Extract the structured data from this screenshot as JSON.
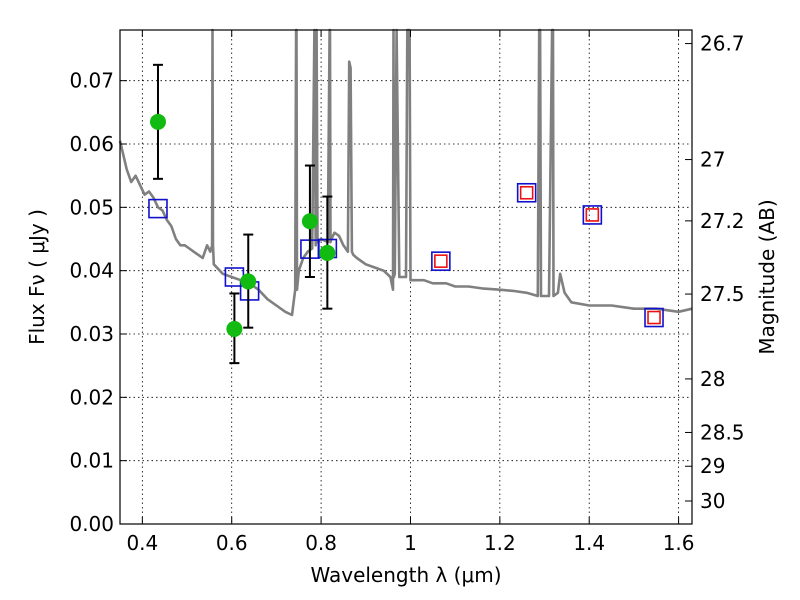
{
  "chart_data": {
    "type": "scatter",
    "xlabel": "Wavelength  λ (μm)",
    "ylabel": "Flux  Fν  ( μJy )",
    "y2label": "Magnitude (AB)",
    "xlim": [
      0.35,
      1.63
    ],
    "ylim": [
      0.0,
      0.078
    ],
    "grid": true,
    "x_ticks": [
      0.4,
      0.6,
      0.8,
      1.0,
      1.2,
      1.4,
      1.6
    ],
    "x_tick_labels": [
      "0.4",
      "0.6",
      "0.8",
      "1",
      "1.2",
      "1.4",
      "1.6"
    ],
    "y_ticks": [
      0.0,
      0.01,
      0.02,
      0.03,
      0.04,
      0.05,
      0.06,
      0.07
    ],
    "y_tick_labels": [
      "0.00",
      "0.01",
      "0.02",
      "0.03",
      "0.04",
      "0.05",
      "0.06",
      "0.07"
    ],
    "mag_ticks": [
      26.7,
      27.0,
      27.2,
      27.5,
      28.0,
      28.5,
      29.0,
      30.0
    ],
    "mag_tick_labels": [
      "26.7",
      "27",
      "27.2",
      "27.5",
      "28",
      "28.5",
      "29",
      "30"
    ],
    "series": [
      {
        "type": "scatter_errorbar",
        "color": "#11bb11",
        "points": [
          {
            "x": 0.435,
            "y": 0.0635,
            "ylo": 0.0545,
            "yhi": 0.0725
          },
          {
            "x": 0.606,
            "y": 0.0308,
            "ylo": 0.0254,
            "yhi": 0.0364
          },
          {
            "x": 0.637,
            "y": 0.0383,
            "ylo": 0.031,
            "yhi": 0.0457
          },
          {
            "x": 0.775,
            "y": 0.0478,
            "ylo": 0.039,
            "yhi": 0.0566
          },
          {
            "x": 0.814,
            "y": 0.0428,
            "ylo": 0.034,
            "yhi": 0.0517
          }
        ]
      },
      {
        "type": "scatter",
        "color": "#1111cc",
        "marker": "square-open",
        "x": [
          0.435,
          0.606,
          0.64,
          0.775,
          0.814,
          1.068,
          1.26,
          1.407,
          1.545
        ],
        "y": [
          0.0498,
          0.039,
          0.0368,
          0.0434,
          0.0435,
          0.0415,
          0.0523,
          0.0488,
          0.0326
        ]
      },
      {
        "type": "scatter",
        "color": "#ee1111",
        "marker": "square-open-small",
        "x": [
          1.068,
          1.26,
          1.407,
          1.545
        ],
        "y": [
          0.0415,
          0.0523,
          0.0488,
          0.0326
        ]
      },
      {
        "type": "line",
        "color": "#808080",
        "x": [
          0.35,
          0.365,
          0.375,
          0.385,
          0.395,
          0.405,
          0.415,
          0.425,
          0.435,
          0.445,
          0.455,
          0.465,
          0.475,
          0.485,
          0.495,
          0.505,
          0.515,
          0.525,
          0.535,
          0.545,
          0.552,
          0.556,
          0.557,
          0.558,
          0.56,
          0.58,
          0.6,
          0.62,
          0.64,
          0.66,
          0.68,
          0.7,
          0.72,
          0.735,
          0.742,
          0.744,
          0.745,
          0.746,
          0.75,
          0.76,
          0.77,
          0.78,
          0.785,
          0.788,
          0.79,
          0.792,
          0.8,
          0.815,
          0.819,
          0.82,
          0.821,
          0.823,
          0.83,
          0.84,
          0.85,
          0.86,
          0.863,
          0.866,
          0.869,
          0.872,
          0.88,
          0.9,
          0.92,
          0.94,
          0.955,
          0.961,
          0.962,
          0.963,
          0.965,
          0.969,
          0.975,
          0.98,
          0.99,
          0.993,
          0.994,
          0.996,
          0.998,
          1.0,
          1.003,
          1.01,
          1.03,
          1.05,
          1.08,
          1.1,
          1.13,
          1.16,
          1.2,
          1.23,
          1.26,
          1.285,
          1.288,
          1.289,
          1.29,
          1.292,
          1.3,
          1.31,
          1.317,
          1.318,
          1.319,
          1.32,
          1.33,
          1.335,
          1.345,
          1.36,
          1.4,
          1.45,
          1.5,
          1.55,
          1.6,
          1.63
        ],
        "y": [
          0.0605,
          0.056,
          0.054,
          0.055,
          0.0535,
          0.052,
          0.0525,
          0.0515,
          0.05,
          0.0495,
          0.048,
          0.047,
          0.045,
          0.044,
          0.044,
          0.0435,
          0.043,
          0.0425,
          0.042,
          0.044,
          0.043,
          0.044,
          0.078,
          0.044,
          0.041,
          0.0395,
          0.039,
          0.0385,
          0.038,
          0.037,
          0.0355,
          0.0345,
          0.0335,
          0.033,
          0.037,
          0.078,
          0.078,
          0.037,
          0.04,
          0.042,
          0.043,
          0.0435,
          0.078,
          0.044,
          0.078,
          0.0445,
          0.045,
          0.0445,
          0.078,
          0.078,
          0.0445,
          0.045,
          0.046,
          0.0455,
          0.044,
          0.043,
          0.073,
          0.072,
          0.043,
          0.0425,
          0.042,
          0.041,
          0.0405,
          0.04,
          0.039,
          0.037,
          0.078,
          0.039,
          0.0395,
          0.078,
          0.039,
          0.039,
          0.039,
          0.078,
          0.078,
          0.078,
          0.078,
          0.0385,
          0.0385,
          0.0385,
          0.0385,
          0.038,
          0.038,
          0.0375,
          0.0375,
          0.0372,
          0.037,
          0.0368,
          0.0365,
          0.036,
          0.078,
          0.078,
          0.078,
          0.036,
          0.036,
          0.036,
          0.078,
          0.078,
          0.078,
          0.036,
          0.0365,
          0.0395,
          0.0365,
          0.035,
          0.0345,
          0.0345,
          0.034,
          0.034,
          0.0335,
          0.034
        ]
      }
    ]
  }
}
